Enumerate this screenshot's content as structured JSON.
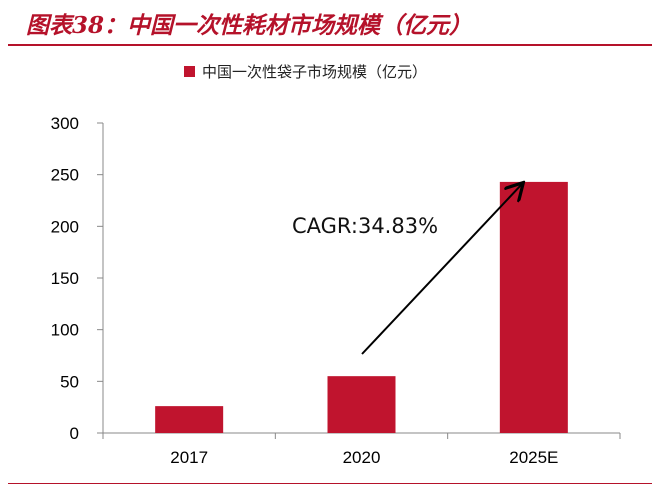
{
  "header": {
    "figure_title": "图表38：中国一次性耗材市场规模（亿元）"
  },
  "chart_data": {
    "type": "bar",
    "categories": [
      "2017",
      "2020",
      "2025E"
    ],
    "series": [
      {
        "name": "中国一次性袋子市场规模（亿元）",
        "values": [
          26,
          55,
          243
        ],
        "color": "#c0142e"
      }
    ],
    "ylim": [
      0,
      300
    ],
    "yticks": [
      0,
      50,
      100,
      150,
      200,
      250,
      300
    ],
    "legend_position": "top-center",
    "grid": false,
    "annotation": {
      "text": "CAGR:34.83%",
      "type": "arrow"
    }
  }
}
